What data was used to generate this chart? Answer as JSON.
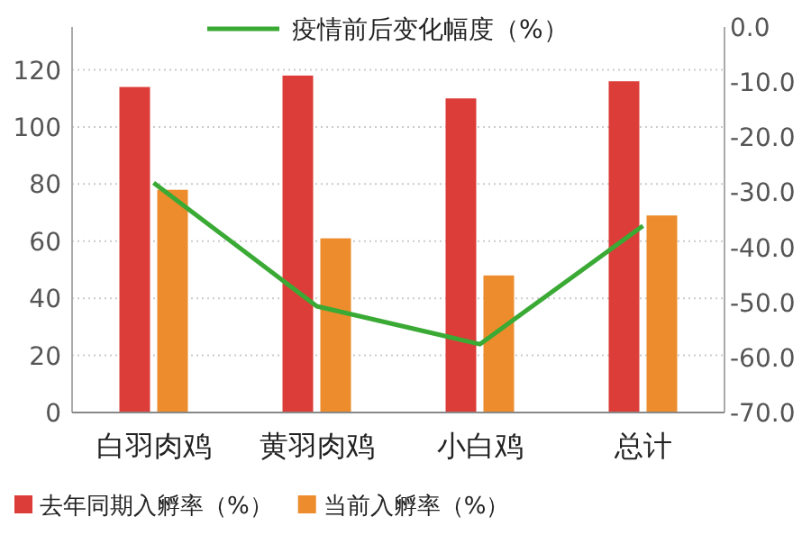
{
  "chart_data": {
    "type": "bar",
    "categories": [
      "白羽肉鸡",
      "黄羽肉鸡",
      "小白鸡",
      "总计"
    ],
    "series": [
      {
        "name": "去年同期入孵率（%）",
        "color": "#dc3d38",
        "values": [
          114,
          118,
          110,
          116
        ]
      },
      {
        "name": "当前入孵率（%）",
        "color": "#ec8c2c",
        "values": [
          78,
          61,
          48,
          69
        ]
      },
      {
        "name": "疫情前后变化幅度（%）",
        "type": "line",
        "axis": "y2",
        "color": "#3aaa35",
        "values": [
          -28.3,
          -50.7,
          -57.6,
          -36.1
        ]
      }
    ],
    "ylim": [
      0,
      135
    ],
    "yticks": [
      0,
      20,
      40,
      60,
      80,
      100,
      120
    ],
    "y2lim": [
      -70,
      0
    ],
    "y2ticks": [
      {
        "value": 0,
        "label": "0.0"
      },
      {
        "value": -10,
        "label": "-10.0"
      },
      {
        "value": -20,
        "label": "-20.0"
      },
      {
        "value": -30,
        "label": "-30.0"
      },
      {
        "value": -40,
        "label": "-40.0"
      },
      {
        "value": -50,
        "label": "-50.0"
      },
      {
        "value": -60,
        "label": "-60.0"
      },
      {
        "value": -70,
        "label": "-70.0"
      }
    ],
    "grid": "y",
    "legend": "bottom"
  }
}
